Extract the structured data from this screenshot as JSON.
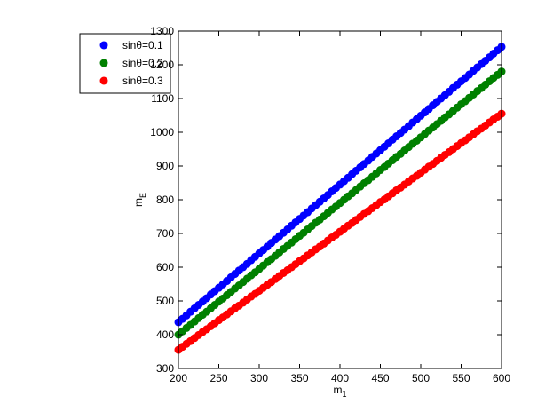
{
  "chart_data": {
    "type": "scatter",
    "xlabel": "m",
    "xlabel_sub": "1",
    "ylabel": "m",
    "ylabel_sub": "E",
    "x": [
      200,
      205,
      210,
      215,
      220,
      225,
      230,
      235,
      240,
      245,
      250,
      255,
      260,
      265,
      270,
      275,
      280,
      285,
      290,
      295,
      300,
      305,
      310,
      315,
      320,
      325,
      330,
      335,
      340,
      345,
      350,
      355,
      360,
      365,
      370,
      375,
      380,
      385,
      390,
      395,
      400,
      405,
      410,
      415,
      420,
      425,
      430,
      435,
      440,
      445,
      450,
      455,
      460,
      465,
      470,
      475,
      480,
      485,
      490,
      495,
      500,
      505,
      510,
      515,
      520,
      525,
      530,
      535,
      540,
      545,
      550,
      555,
      560,
      565,
      570,
      575,
      580,
      585,
      590,
      595,
      600
    ],
    "series": [
      {
        "name": "sinθ=0.1",
        "color": "#0000ff",
        "values": [
          437,
          447,
          457,
          468,
          478,
          488,
          498,
          508,
          519,
          529,
          539,
          549,
          559,
          570,
          580,
          590,
          600,
          610,
          621,
          631,
          641,
          651,
          661,
          672,
          682,
          692,
          702,
          712,
          723,
          733,
          743,
          753,
          763,
          774,
          784,
          794,
          804,
          814,
          825,
          835,
          845,
          855,
          865,
          876,
          886,
          896,
          906,
          916,
          927,
          937,
          947,
          957,
          967,
          978,
          988,
          998,
          1008,
          1018,
          1029,
          1039,
          1049,
          1059,
          1069,
          1080,
          1090,
          1100,
          1110,
          1120,
          1131,
          1141,
          1151,
          1161,
          1171,
          1182,
          1192,
          1202,
          1212,
          1222,
          1233,
          1243,
          1253
        ]
      },
      {
        "name": "sinθ=0.2",
        "color": "#008000",
        "values": [
          400,
          410,
          420,
          429,
          439,
          449,
          459,
          468,
          478,
          488,
          498,
          507,
          517,
          527,
          537,
          546,
          556,
          566,
          576,
          585,
          595,
          605,
          615,
          624,
          634,
          644,
          654,
          663,
          673,
          683,
          693,
          702,
          712,
          722,
          732,
          741,
          751,
          761,
          771,
          780,
          790,
          800,
          810,
          819,
          829,
          839,
          849,
          858,
          868,
          878,
          888,
          897,
          907,
          917,
          927,
          936,
          946,
          956,
          966,
          975,
          985,
          995,
          1005,
          1014,
          1024,
          1034,
          1044,
          1053,
          1063,
          1073,
          1083,
          1092,
          1102,
          1112,
          1122,
          1131,
          1141,
          1151,
          1161,
          1170,
          1180
        ]
      },
      {
        "name": "sinθ=0.3",
        "color": "#ff0000",
        "values": [
          355,
          364,
          373,
          381,
          390,
          399,
          408,
          416,
          425,
          434,
          443,
          451,
          460,
          469,
          478,
          486,
          495,
          504,
          513,
          521,
          530,
          539,
          548,
          556,
          565,
          574,
          583,
          591,
          600,
          609,
          618,
          626,
          635,
          644,
          653,
          661,
          670,
          679,
          688,
          696,
          705,
          714,
          723,
          731,
          740,
          749,
          758,
          766,
          775,
          784,
          793,
          801,
          810,
          819,
          828,
          836,
          845,
          854,
          863,
          871,
          880,
          889,
          898,
          906,
          915,
          924,
          933,
          941,
          950,
          959,
          968,
          976,
          985,
          994,
          1003,
          1011,
          1020,
          1029,
          1038,
          1046,
          1055
        ]
      }
    ],
    "xlim": [
      200,
      600
    ],
    "ylim": [
      300,
      1300
    ],
    "xticks": [
      200,
      250,
      300,
      350,
      400,
      450,
      500,
      550,
      600
    ],
    "yticks": [
      300,
      400,
      500,
      600,
      700,
      800,
      900,
      1000,
      1100,
      1200,
      1300
    ],
    "grid": false,
    "legend": "upper left"
  }
}
